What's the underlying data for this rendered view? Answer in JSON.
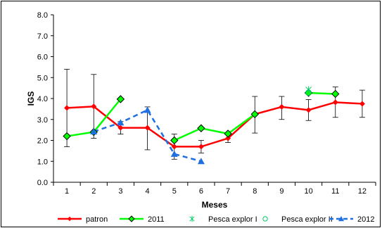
{
  "chart_data": {
    "type": "line",
    "xlabel": "Meses",
    "ylabel": "IGS",
    "x": [
      1,
      2,
      3,
      4,
      5,
      6,
      7,
      8,
      9,
      10,
      11,
      12
    ],
    "xlim": [
      0.5,
      12.5
    ],
    "ylim": [
      0,
      8
    ],
    "yticks": [
      "0.0",
      "1.0",
      "2.0",
      "3.0",
      "4.0",
      "5.0",
      "6.0",
      "7.0",
      "8.0"
    ],
    "legend_position": "bottom",
    "series": [
      {
        "name": "patron",
        "color": "#ff0000",
        "marker": "diamond",
        "line": "solid",
        "points": [
          [
            1,
            3.55
          ],
          [
            2,
            3.62
          ],
          [
            3,
            2.6
          ],
          [
            4,
            2.6
          ],
          [
            5,
            1.7
          ],
          [
            6,
            1.7
          ],
          [
            7,
            2.1
          ],
          [
            8,
            3.25
          ],
          [
            9,
            3.6
          ],
          [
            10,
            3.45
          ],
          [
            11,
            3.82
          ],
          [
            12,
            3.75
          ]
        ],
        "errors": [
          [
            1,
            1.7,
            5.4
          ],
          [
            2,
            2.1,
            5.15
          ],
          [
            3,
            2.3,
            2.9
          ],
          [
            4,
            1.55,
            3.6
          ],
          [
            5,
            1.1,
            2.3
          ],
          [
            6,
            1.4,
            2.0
          ],
          [
            7,
            1.9,
            2.3
          ],
          [
            8,
            2.35,
            4.1
          ],
          [
            9,
            3.0,
            4.1
          ],
          [
            10,
            2.95,
            3.95
          ],
          [
            11,
            3.1,
            4.55
          ],
          [
            12,
            3.1,
            4.4
          ]
        ]
      },
      {
        "name": "2011",
        "color": "#00ff00",
        "marker": "diamond-dark",
        "line": "solid",
        "points": [
          [
            1,
            2.2
          ],
          [
            2,
            2.4
          ],
          [
            3,
            3.97
          ],
          null,
          [
            5,
            2.0
          ],
          [
            6,
            2.58
          ],
          [
            7,
            2.32
          ],
          [
            8,
            3.25
          ],
          null,
          [
            10,
            4.27
          ],
          [
            11,
            4.22
          ],
          null
        ]
      },
      {
        "name": "Pesca explor I",
        "color": "#00cc66",
        "marker": "star",
        "line": "none",
        "points": [
          [
            10,
            4.42
          ]
        ]
      },
      {
        "name": "Pesca explor II",
        "color": "#00cc66",
        "marker": "circle",
        "line": "none",
        "points": [
          [
            10,
            4.28
          ]
        ]
      },
      {
        "name": "2012",
        "color": "#1e6fe0",
        "marker": "triangle",
        "line": "dashed",
        "points": [
          [
            2,
            2.42
          ],
          [
            3,
            2.85
          ],
          [
            4,
            3.45
          ],
          [
            5,
            1.35
          ],
          [
            6,
            1.0
          ]
        ]
      }
    ]
  }
}
